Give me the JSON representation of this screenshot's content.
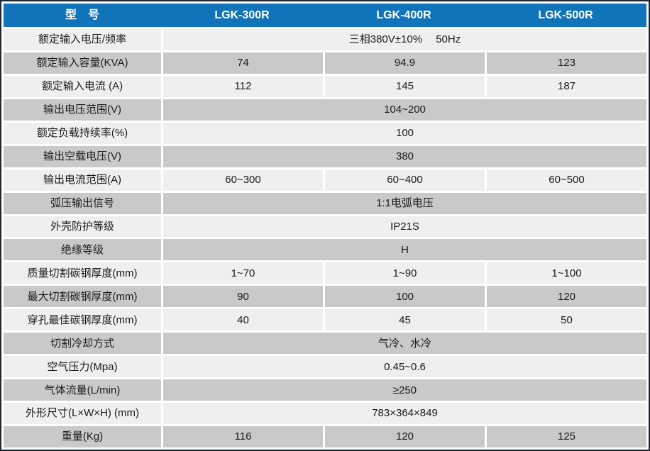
{
  "table": {
    "title_cell": "型　号",
    "models": [
      "LGK-300R",
      "LGK-400R",
      "LGK-500R"
    ],
    "rows": [
      {
        "label": "额定输入电压/频率",
        "merged": "三相380V±10%　 50Hz"
      },
      {
        "label": "额定输入容量(KVA)",
        "values": [
          "74",
          "94.9",
          "123"
        ]
      },
      {
        "label": "额定输入电流 (A)",
        "values": [
          "112",
          "145",
          "187"
        ]
      },
      {
        "label": "输出电压范围(V)",
        "merged": "104~200"
      },
      {
        "label": "额定负载持续率(%)",
        "merged": "100"
      },
      {
        "label": "输出空载电压(V)",
        "merged": "380"
      },
      {
        "label": "输出电流范围(A)",
        "values": [
          "60~300",
          "60~400",
          "60~500"
        ]
      },
      {
        "label": "弧压输出信号",
        "merged": "1:1电弧电压"
      },
      {
        "label": "外壳防护等级",
        "merged": "IP21S"
      },
      {
        "label": "绝缘等级",
        "merged": "H"
      },
      {
        "label": "质量切割碳钢厚度(mm)",
        "values": [
          "1~70",
          "1~90",
          "1~100"
        ]
      },
      {
        "label": "最大切割碳钢厚度(mm)",
        "values": [
          "90",
          "100",
          "120"
        ]
      },
      {
        "label": "穿孔最佳碳钢厚度(mm)",
        "values": [
          "40",
          "45",
          "50"
        ]
      },
      {
        "label": "切割冷却方式",
        "merged": "气冷、水冷"
      },
      {
        "label": "空气压力(Mpa)",
        "merged": "0.45~0.6"
      },
      {
        "label": "气体流量(L/min)",
        "merged": "≥250"
      },
      {
        "label": "外形尺寸(L×W×H) (mm)",
        "merged": "783×364×849"
      },
      {
        "label": "重量(Kg)",
        "values": [
          "116",
          "120",
          "125"
        ]
      }
    ]
  },
  "colors": {
    "header_blue": "#1173b9",
    "row_light": "#efefef",
    "row_gray": "#c9c9c9",
    "outer_border": "#1d2733",
    "header_text": "#ffffff",
    "body_text": "#1a1a1a"
  }
}
